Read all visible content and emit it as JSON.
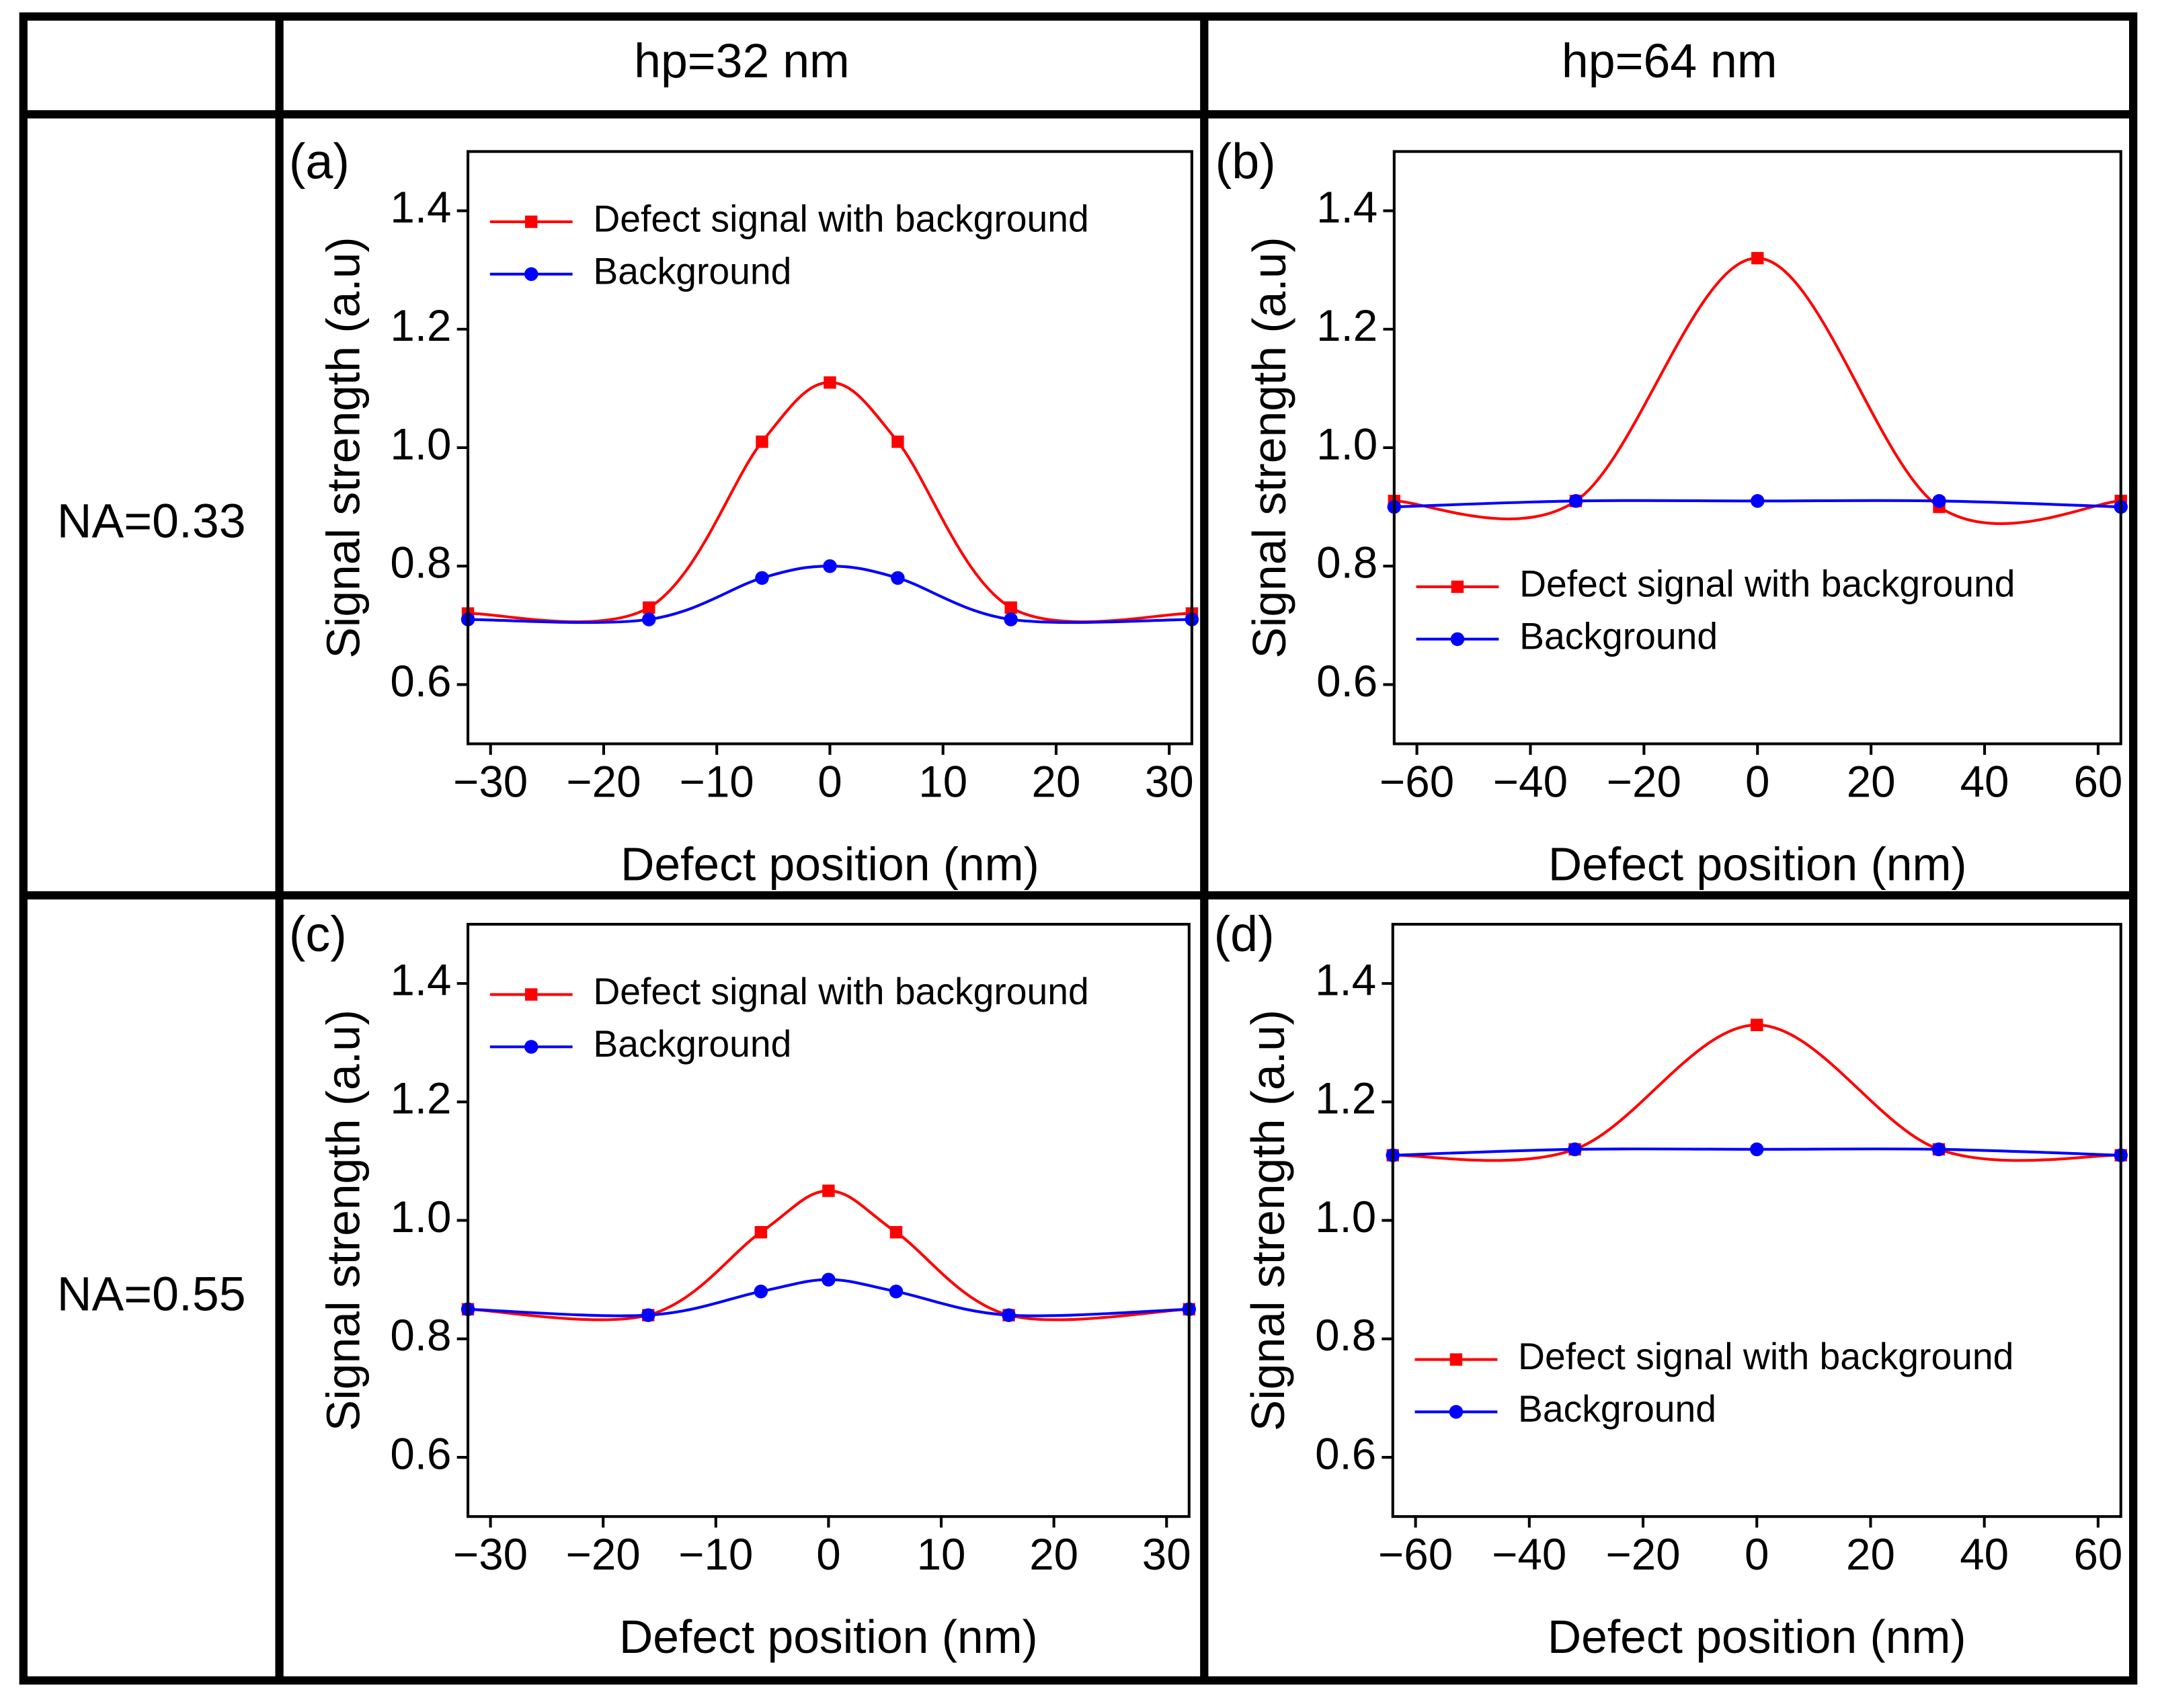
{
  "table": {
    "columns": [
      "hp=32 nm",
      "hp=64 nm"
    ],
    "rows": [
      "NA=0.33",
      "NA=0.55"
    ]
  },
  "chart_data": [
    {
      "type": "line",
      "panel": "(a)",
      "x_label": "Defect position (nm)",
      "y_label": "Signal strength (a.u)",
      "x": [
        -32,
        -16,
        -6,
        0,
        6,
        16,
        32
      ],
      "series": [
        {
          "name": "Defect signal with background",
          "color": "#ff0000",
          "marker": "square",
          "values": [
            0.72,
            0.73,
            1.01,
            1.11,
            1.01,
            0.73,
            0.72
          ]
        },
        {
          "name": "Background",
          "color": "#0000ff",
          "marker": "circle",
          "values": [
            0.71,
            0.71,
            0.78,
            0.8,
            0.78,
            0.71,
            0.71
          ]
        }
      ],
      "xlim": [
        -32,
        32
      ],
      "xticks": [
        {
          "value": -30,
          "label": "−30"
        },
        {
          "value": -20,
          "label": "−20"
        },
        {
          "value": -10,
          "label": "−10"
        },
        0,
        10,
        20,
        30
      ],
      "ylim": [
        0.5,
        1.5
      ],
      "yticks": [
        0.6,
        0.8,
        {
          "value": 1,
          "label": "1.0"
        },
        1.2,
        1.4
      ],
      "legend": "upper left"
    },
    {
      "type": "line",
      "panel": "(b)",
      "x_label": "Defect position (nm)",
      "y_label": "Signal strength (a.u)",
      "x": [
        -64,
        -32,
        0,
        32,
        64
      ],
      "series": [
        {
          "name": "Defect signal with background",
          "color": "#ff0000",
          "marker": "square",
          "values": [
            0.91,
            0.91,
            1.32,
            0.9,
            0.91
          ]
        },
        {
          "name": "Background",
          "color": "#0000ff",
          "marker": "circle",
          "values": [
            0.9,
            0.91,
            0.91,
            0.91,
            0.9
          ]
        }
      ],
      "xlim": [
        -64,
        64
      ],
      "xticks": [
        {
          "value": -60,
          "label": "−60"
        },
        {
          "value": -40,
          "label": "−40"
        },
        {
          "value": -20,
          "label": "−20"
        },
        0,
        20,
        40,
        60
      ],
      "ylim": [
        0.5,
        1.5
      ],
      "yticks": [
        0.6,
        0.8,
        {
          "value": 1,
          "label": "1.0"
        },
        1.2,
        1.4
      ],
      "legend": "lower left"
    },
    {
      "type": "line",
      "panel": "(c)",
      "x_label": "Defect position (nm)",
      "y_label": "Signal strength (a.u)",
      "x": [
        -32,
        -16,
        -6,
        0,
        6,
        16,
        32
      ],
      "series": [
        {
          "name": "Defect signal with background",
          "color": "#ff0000",
          "marker": "square",
          "values": [
            0.85,
            0.84,
            0.98,
            1.05,
            0.98,
            0.84,
            0.85
          ]
        },
        {
          "name": "Background",
          "color": "#0000ff",
          "marker": "circle",
          "values": [
            0.85,
            0.84,
            0.88,
            0.9,
            0.88,
            0.84,
            0.85
          ]
        }
      ],
      "xlim": [
        -32,
        32
      ],
      "xticks": [
        {
          "value": -30,
          "label": "−30"
        },
        {
          "value": -20,
          "label": "−20"
        },
        {
          "value": -10,
          "label": "−10"
        },
        0,
        10,
        20,
        30
      ],
      "ylim": [
        0.5,
        1.5
      ],
      "yticks": [
        0.6,
        0.8,
        {
          "value": 1,
          "label": "1.0"
        },
        1.2,
        1.4
      ],
      "legend": "upper left"
    },
    {
      "type": "line",
      "panel": "(d)",
      "x_label": "Defect position (nm)",
      "y_label": "Signal strength (a.u)",
      "x": [
        -64,
        -32,
        0,
        32,
        64
      ],
      "series": [
        {
          "name": "Defect signal with background",
          "color": "#ff0000",
          "marker": "square",
          "values": [
            1.11,
            1.12,
            1.33,
            1.12,
            1.11
          ]
        },
        {
          "name": "Background",
          "color": "#0000ff",
          "marker": "circle",
          "values": [
            1.11,
            1.12,
            1.12,
            1.12,
            1.11
          ]
        }
      ],
      "xlim": [
        -64,
        64
      ],
      "xticks": [
        {
          "value": -60,
          "label": "−60"
        },
        {
          "value": -40,
          "label": "−40"
        },
        {
          "value": -20,
          "label": "−20"
        },
        0,
        20,
        40,
        60
      ],
      "ylim": [
        0.5,
        1.5
      ],
      "yticks": [
        0.6,
        0.8,
        {
          "value": 1,
          "label": "1.0"
        },
        1.2,
        1.4
      ],
      "legend": "lower left"
    }
  ]
}
